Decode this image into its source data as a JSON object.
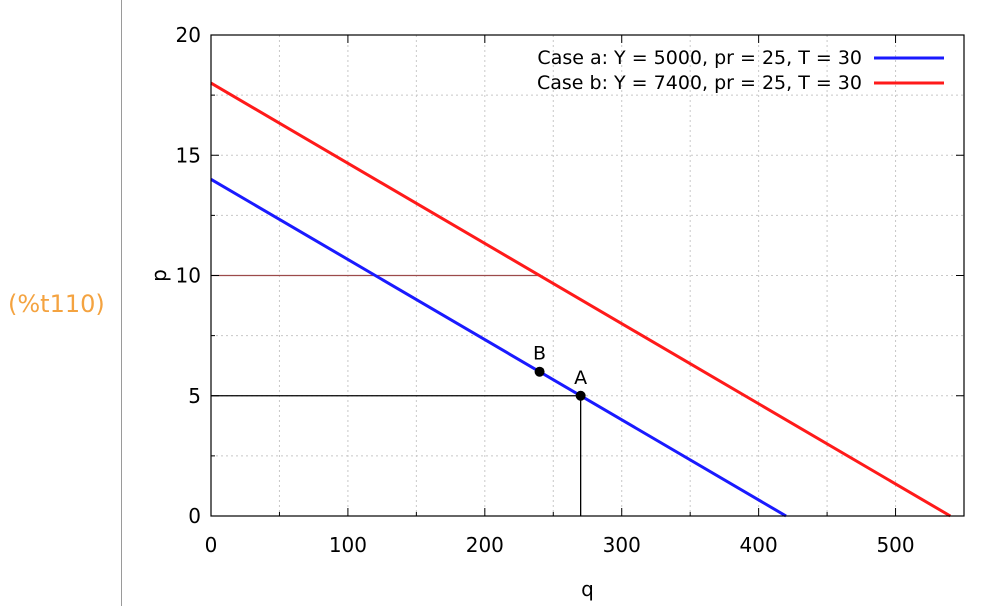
{
  "output_label": "(%t110)",
  "chart_data": {
    "type": "line",
    "title": "",
    "xlabel": "q",
    "ylabel": "p",
    "xlim": [
      0,
      550
    ],
    "ylim": [
      0,
      20
    ],
    "xticks": [
      0,
      100,
      200,
      300,
      400,
      500
    ],
    "yticks": [
      0,
      5,
      10,
      15,
      20
    ],
    "grid": true,
    "legend_position": "top-right",
    "series": [
      {
        "name": "Case a: Y = 5000, pr = 25, T = 30",
        "color": "#1a1aff",
        "x": [
          0,
          420
        ],
        "y": [
          14,
          0
        ]
      },
      {
        "name": "Case b: Y = 7400, pr = 25, T = 30",
        "color": "#ff1a1a",
        "x": [
          0,
          540
        ],
        "y": [
          18,
          0
        ]
      }
    ],
    "guide_lines": [
      {
        "color": "#9c4a4a",
        "x": [
          0,
          240
        ],
        "y": [
          10,
          10
        ]
      },
      {
        "color": "#000000",
        "x": [
          0,
          270
        ],
        "y": [
          5,
          5
        ]
      },
      {
        "color": "#000000",
        "x": [
          270,
          270
        ],
        "y": [
          5,
          0
        ]
      }
    ],
    "points": [
      {
        "label": "B",
        "x": 240,
        "y": 6
      },
      {
        "label": "A",
        "x": 270,
        "y": 5
      }
    ]
  }
}
